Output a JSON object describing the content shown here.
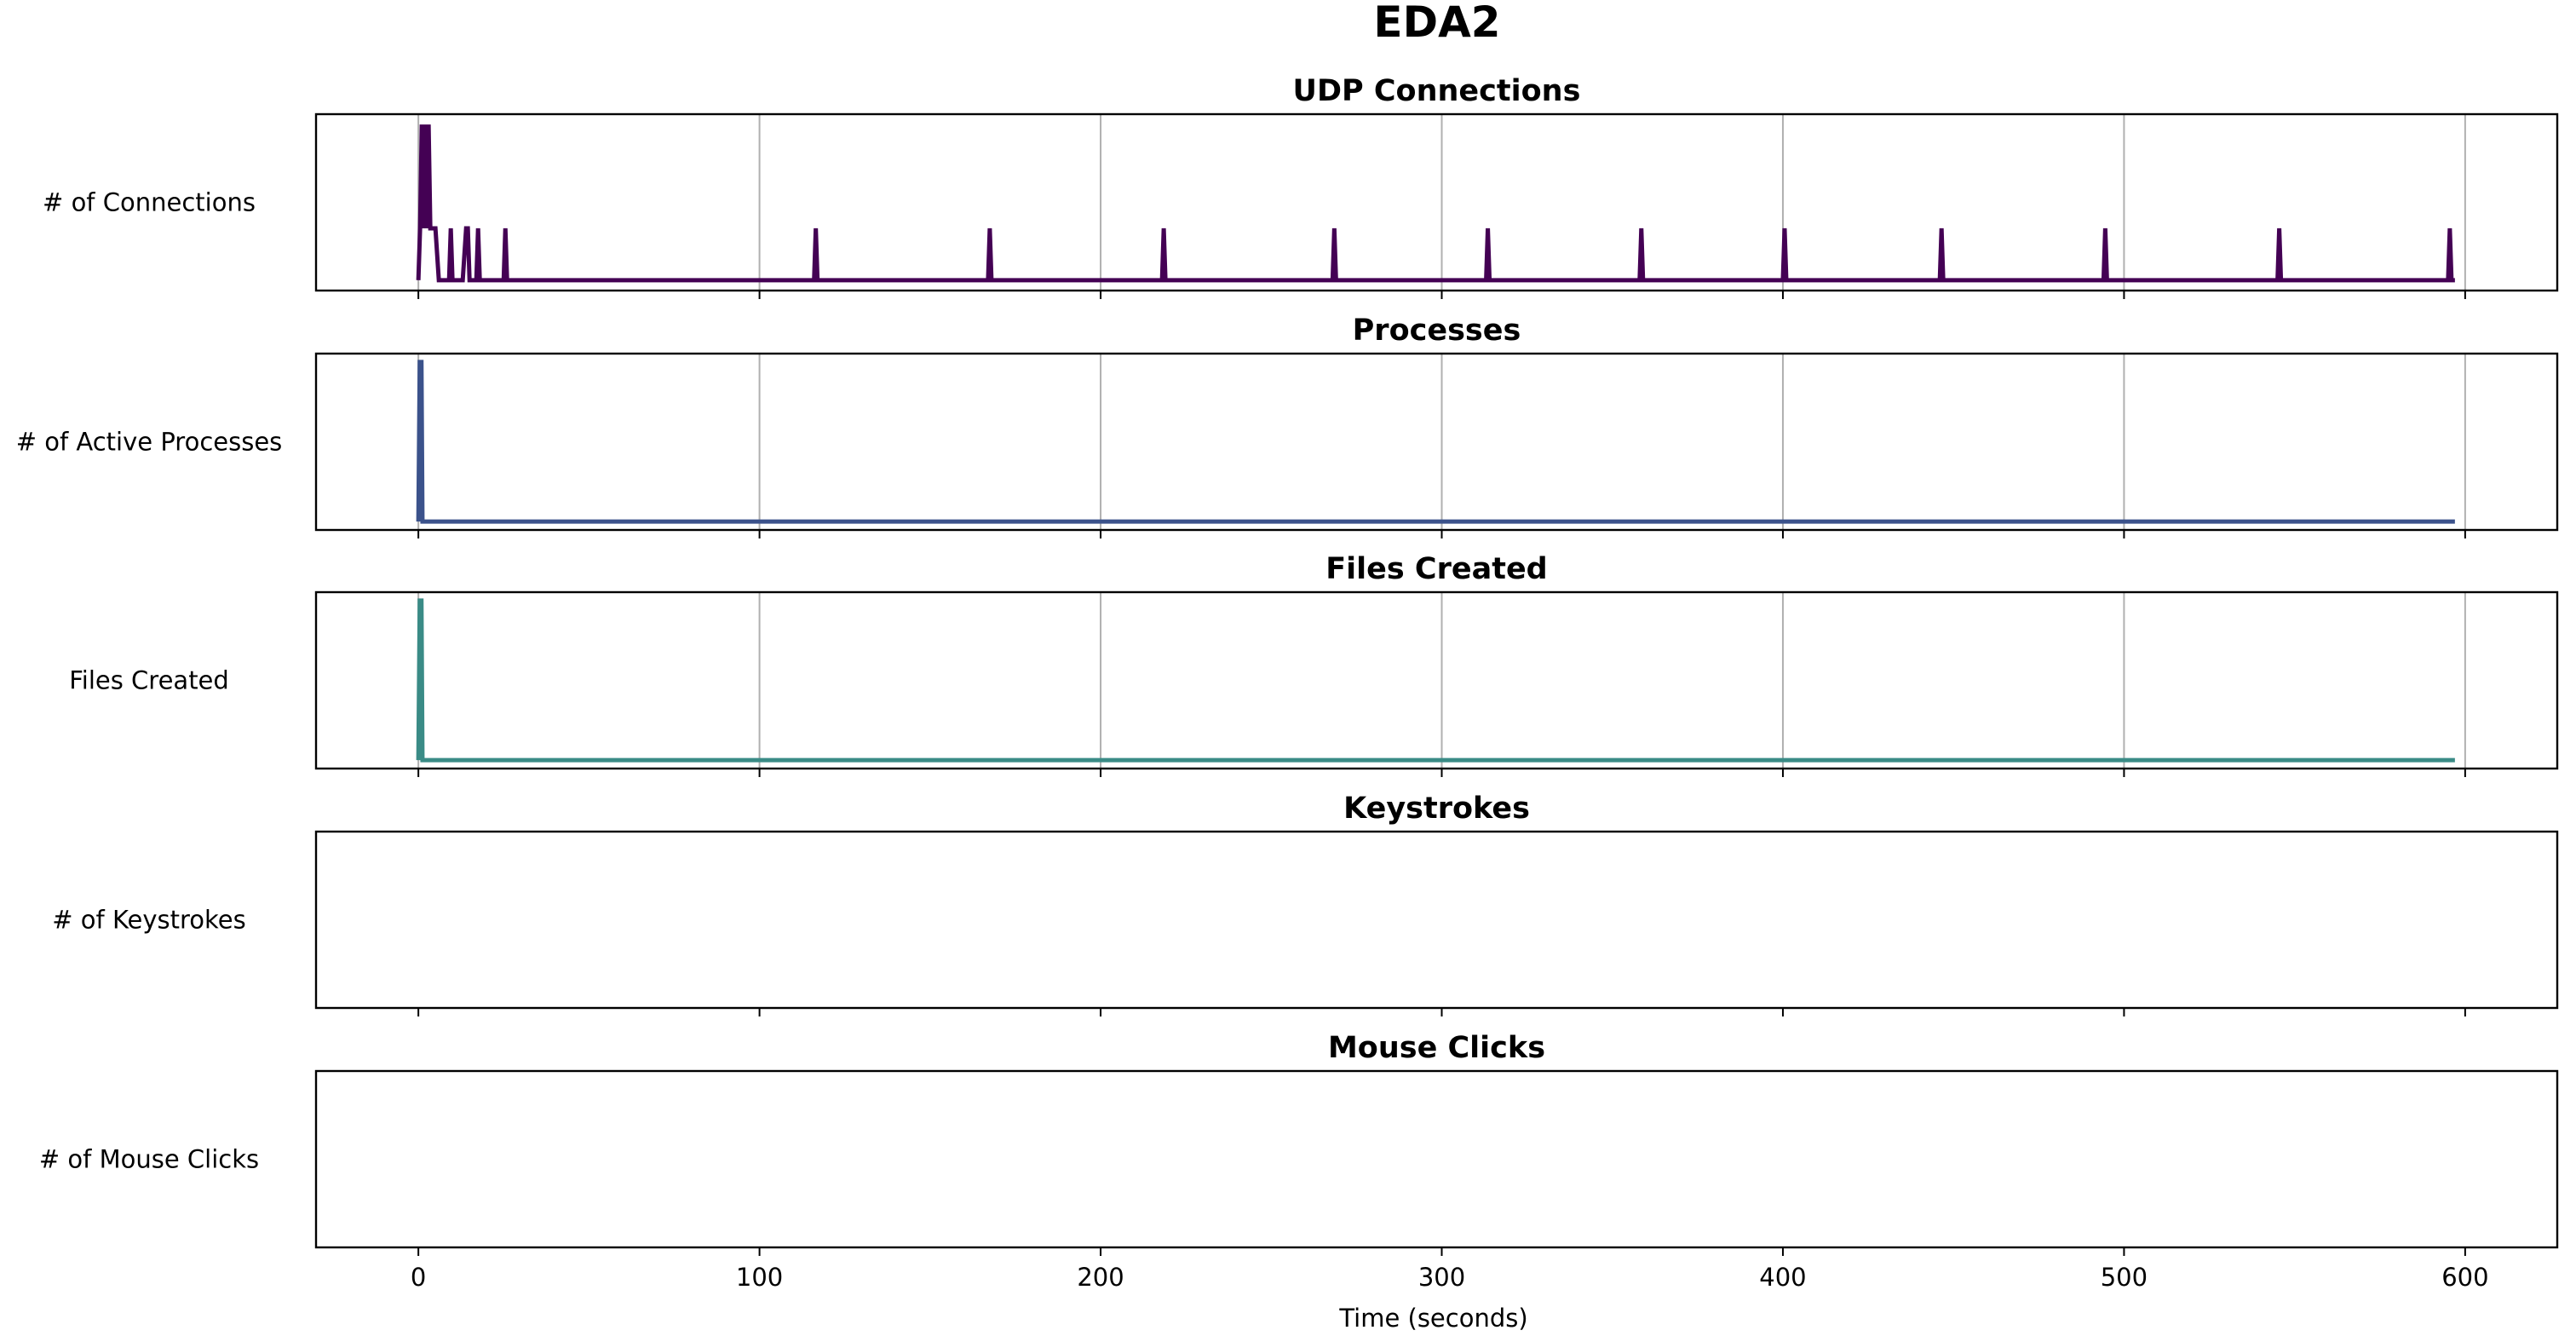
{
  "figure_title": "EDA2",
  "chart_data": [
    {
      "type": "line",
      "title": "UDP Connections",
      "ylabel": "# of Connections",
      "xlabel": "",
      "xlim": [
        -30,
        627
      ],
      "ylim": [
        -0.2,
        3.2
      ],
      "grid": "x",
      "color": "#440154",
      "series": [
        {
          "x": [
            0,
            0.5,
            1,
            1.5,
            2,
            2.5,
            3,
            3.5,
            4,
            5,
            6,
            7,
            8,
            9,
            9.5,
            10,
            11,
            12,
            13,
            14,
            14.5,
            15,
            16,
            17,
            17.5,
            18,
            19,
            25,
            25.5,
            26,
            116,
            116.5,
            117,
            167,
            167.5,
            168,
            218,
            218.5,
            219,
            268,
            268.5,
            269,
            313,
            313.5,
            314,
            358,
            358.5,
            359,
            400,
            400.5,
            401,
            446,
            446.5,
            447,
            494,
            494.5,
            495,
            545,
            545.5,
            546,
            595,
            595.5,
            596,
            597
          ],
          "y": [
            0,
            1,
            3,
            1,
            3,
            1,
            3,
            1,
            1,
            1,
            0,
            0,
            0,
            0,
            1,
            0,
            0,
            0,
            0,
            1,
            1,
            0,
            0,
            0,
            1,
            0,
            0,
            0,
            1,
            0,
            0,
            1,
            0,
            0,
            1,
            0,
            0,
            1,
            0,
            0,
            1,
            0,
            0,
            1,
            0,
            0,
            1,
            0,
            0,
            1,
            0,
            0,
            1,
            0,
            0,
            1,
            0,
            0,
            1,
            0,
            0,
            1,
            0,
            0
          ]
        }
      ]
    },
    {
      "type": "line",
      "title": "Processes",
      "ylabel": "# of Active Processes",
      "xlabel": "",
      "xlim": [
        -30,
        627
      ],
      "ylim": [
        -1,
        20
      ],
      "grid": "x",
      "color": "#3b528b",
      "series": [
        {
          "x": [
            0,
            0.4,
            0.9,
            1.2,
            2,
            597
          ],
          "y": [
            0,
            19,
            19,
            0,
            0,
            0
          ]
        }
      ]
    },
    {
      "type": "line",
      "title": "Files Created",
      "ylabel": "Files Created",
      "xlabel": "",
      "xlim": [
        -30,
        627
      ],
      "ylim": [
        -1,
        20
      ],
      "grid": "x",
      "color": "#3a8b86",
      "series": [
        {
          "x": [
            0,
            0.4,
            0.9,
            1.2,
            2,
            597
          ],
          "y": [
            0,
            19,
            19,
            0,
            0,
            0
          ]
        }
      ]
    },
    {
      "type": "line",
      "title": "Keystrokes",
      "ylabel": "# of Keystrokes",
      "xlabel": "",
      "xlim": [
        -30,
        627
      ],
      "ylim": [
        0,
        1
      ],
      "grid": "none",
      "color": "#5ec962",
      "series": []
    },
    {
      "type": "line",
      "title": "Mouse Clicks",
      "ylabel": "# of Mouse Clicks",
      "xlabel": "Time (seconds)",
      "xlim": [
        -30,
        627
      ],
      "ylim": [
        0,
        1
      ],
      "grid": "none",
      "color": "#fde725",
      "series": []
    }
  ],
  "x_ticks": [
    0,
    100,
    200,
    300,
    400,
    500,
    600
  ],
  "x_tick_labels": [
    "0",
    "100",
    "200",
    "300",
    "400",
    "500",
    "600"
  ]
}
